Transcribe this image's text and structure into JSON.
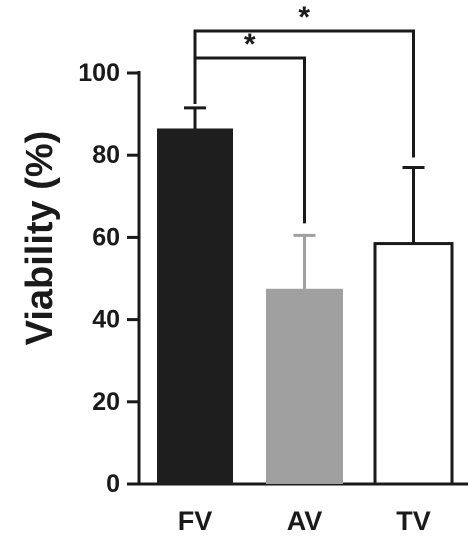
{
  "chart_data": {
    "type": "bar",
    "categories": [
      "FV",
      "AV",
      "TV"
    ],
    "values": [
      86.5,
      47.5,
      58.5
    ],
    "errors": [
      5,
      13,
      18.5
    ],
    "colors": [
      "#1e1e1e",
      "#a0a0a0",
      "#ffffff"
    ],
    "ylabel": "Viability (%)",
    "ylim": [
      0,
      100
    ],
    "yticks": [
      0,
      20,
      40,
      60,
      80,
      100
    ],
    "significance": [
      {
        "from": "FV",
        "to": "AV",
        "label": "*"
      },
      {
        "from": "FV",
        "to": "TV",
        "label": "*"
      }
    ],
    "grid": false,
    "legend": "none"
  }
}
